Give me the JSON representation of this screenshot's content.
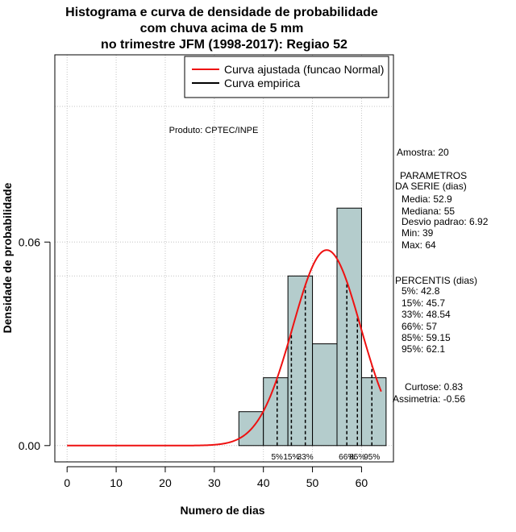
{
  "chart_data": {
    "type": "histogram",
    "title_lines": [
      "Histograma e curva de densidade de probabilidade",
      "com chuva acima de 5 mm",
      "no trimestre JFM (1998-2017): Regiao 52"
    ],
    "xlabel": "Numero de dias",
    "ylabel": "Densidade de probabilidade",
    "xlim": [
      -2.5,
      66.5
    ],
    "ylim": [
      -0.0048,
      0.1152
    ],
    "x_ticks": [
      0,
      10,
      20,
      30,
      40,
      50,
      60
    ],
    "y_ticks": [
      0.0,
      0.06
    ],
    "y_tick_labels": [
      "0.00",
      "0.06"
    ],
    "grid_x": [
      0,
      10,
      20,
      30,
      40,
      50,
      60
    ],
    "grid_y": [
      0.0,
      0.05,
      0.06,
      0.1
    ],
    "bins": [
      {
        "from": 35,
        "to": 40,
        "density": 0.01
      },
      {
        "from": 40,
        "to": 45,
        "density": 0.02
      },
      {
        "from": 45,
        "to": 50,
        "density": 0.05
      },
      {
        "from": 50,
        "to": 55,
        "density": 0.03
      },
      {
        "from": 55,
        "to": 60,
        "density": 0.07
      },
      {
        "from": 60,
        "to": 65,
        "density": 0.02
      }
    ],
    "bar_color": "#b4cccc",
    "normal_fit": {
      "mean": 52.9,
      "sd": 6.92,
      "x_range": [
        0,
        64
      ],
      "color": "#ee1111"
    },
    "percentile_lines": [
      42.8,
      45.7,
      48.54,
      57,
      59.15,
      62.1
    ],
    "percentile_labels": [
      {
        "text": "5%",
        "x": 42.8
      },
      {
        "text": "15%",
        "x": 45.7
      },
      {
        "text": "33%",
        "x": 48.54
      },
      {
        "text": "66%",
        "x": 57
      },
      {
        "text": "85%",
        "x": 59.15
      },
      {
        "text": "95%",
        "x": 62.1
      }
    ],
    "legend": {
      "position": "top-right",
      "entries": [
        {
          "label": "Curva ajustada (funcao Normal)",
          "color": "#ee1111"
        },
        {
          "label": "Curva empirica",
          "color": "#000000"
        }
      ]
    },
    "annotation": "Produto: CPTEC/INPE"
  },
  "stats": {
    "amostra": "Amostra: 20",
    "parametros_title": "PARAMETROS",
    "parametros_subtitle": "DA SERIE (dias)",
    "media": "Media: 52.9",
    "mediana": "Mediana: 55",
    "desvio": "Desvio padrao: 6.92",
    "min": "Min: 39",
    "max": "Max: 64",
    "percentis_title": "PERCENTIS (dias)",
    "p5": "5%: 42.8",
    "p15": "15%: 45.7",
    "p33": "33%: 48.54",
    "p66": "66%: 57",
    "p85": "85%: 59.15",
    "p95": "95%: 62.1",
    "curtose": "Curtose: 0.83",
    "assimetria": "Assimetria: -0.56"
  }
}
